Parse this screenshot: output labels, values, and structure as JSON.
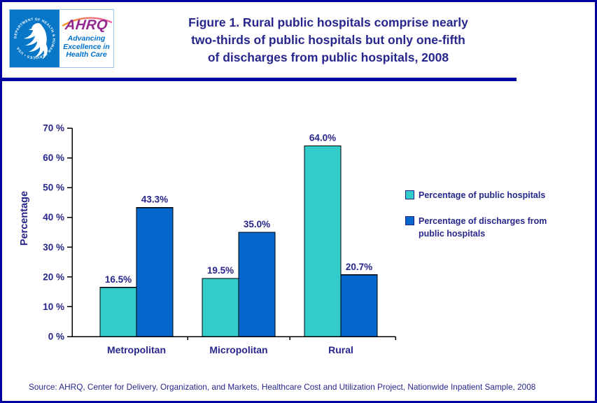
{
  "page": {
    "background": "#FFFFFF",
    "border_color": "#0000A0"
  },
  "header": {
    "logo": {
      "seal_circular_text": "DEPARTMENT OF HEALTH & HUMAN SERVICES • USA",
      "seal_bg_color": "#0877C8",
      "brand": "AHRQ",
      "brand_color": "#92278F",
      "tagline_lines": [
        "Advancing",
        "Excellence in",
        "Health Care"
      ],
      "tagline_color": "#0072CE"
    },
    "title_lines": [
      "Figure 1. Rural public hospitals comprise nearly",
      "two-thirds of public hospitals but only one-fifth",
      "of discharges from public hospitals, 2008"
    ],
    "title_color": "#26268C",
    "rule_color": "#0000A0"
  },
  "chart_data": {
    "type": "bar",
    "title": "Figure 1. Rural public hospitals comprise nearly two-thirds of public hospitals but only one-fifth of discharges from public hospitals, 2008",
    "categories": [
      "Metropolitan",
      "Micropolitan",
      "Rural"
    ],
    "series": [
      {
        "name": "Percentage of public hospitals",
        "color": "#33CCCC",
        "values": [
          16.5,
          19.5,
          64.0
        ],
        "labels": [
          "16.5%",
          "19.5%",
          "64.0%"
        ]
      },
      {
        "name": "Percentage of discharges from public hospitals",
        "color": "#0566CC",
        "values": [
          43.3,
          35.0,
          20.7
        ],
        "labels": [
          "43.3%",
          "35.0%",
          "20.7%"
        ]
      }
    ],
    "xlabel": "",
    "ylabel": "Percentage",
    "ylim": [
      0,
      70
    ],
    "ytick_values": [
      0,
      10,
      20,
      30,
      40,
      50,
      60,
      70
    ],
    "ytick_labels": [
      "0 %",
      "10 %",
      "20 %",
      "30 %",
      "40 %",
      "50 %",
      "60 %",
      "70 %"
    ],
    "grid": false,
    "legend_position": "right",
    "bar_border_color": "#000000",
    "axis_color": "#000000",
    "text_color": "#26268C"
  },
  "footer": {
    "source": "Source: AHRQ, Center for Delivery, Organization, and Markets, Healthcare Cost and Utilization Project, Nationwide Inpatient Sample, 2008"
  }
}
